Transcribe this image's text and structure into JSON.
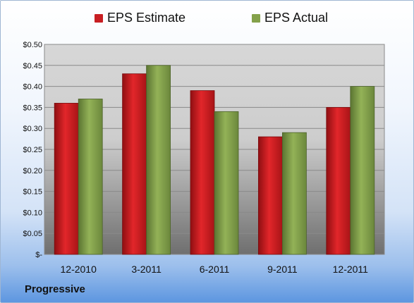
{
  "company_name": "Progressive",
  "colors": {
    "estimate": "#c81e22",
    "actual": "#84a14a"
  },
  "chart_data": {
    "type": "bar",
    "title": "",
    "xlabel": "",
    "ylabel": "",
    "categories": [
      "12-2010",
      "3-2011",
      "6-2011",
      "9-2011",
      "12-2011"
    ],
    "series": [
      {
        "name": "EPS Estimate",
        "values": [
          0.36,
          0.43,
          0.39,
          0.28,
          0.35
        ]
      },
      {
        "name": "EPS Actual",
        "values": [
          0.37,
          0.45,
          0.34,
          0.29,
          0.4
        ]
      }
    ],
    "ylim": [
      0,
      0.5
    ],
    "yticks": [
      0,
      0.05,
      0.1,
      0.15,
      0.2,
      0.25,
      0.3,
      0.35,
      0.4,
      0.45,
      0.5
    ],
    "ytick_labels": [
      "$-",
      "$0.05",
      "$0.10",
      "$0.15",
      "$0.20",
      "$0.25",
      "$0.30",
      "$0.35",
      "$0.40",
      "$0.45",
      "$0.50"
    ],
    "grid": true,
    "legend": "top"
  }
}
